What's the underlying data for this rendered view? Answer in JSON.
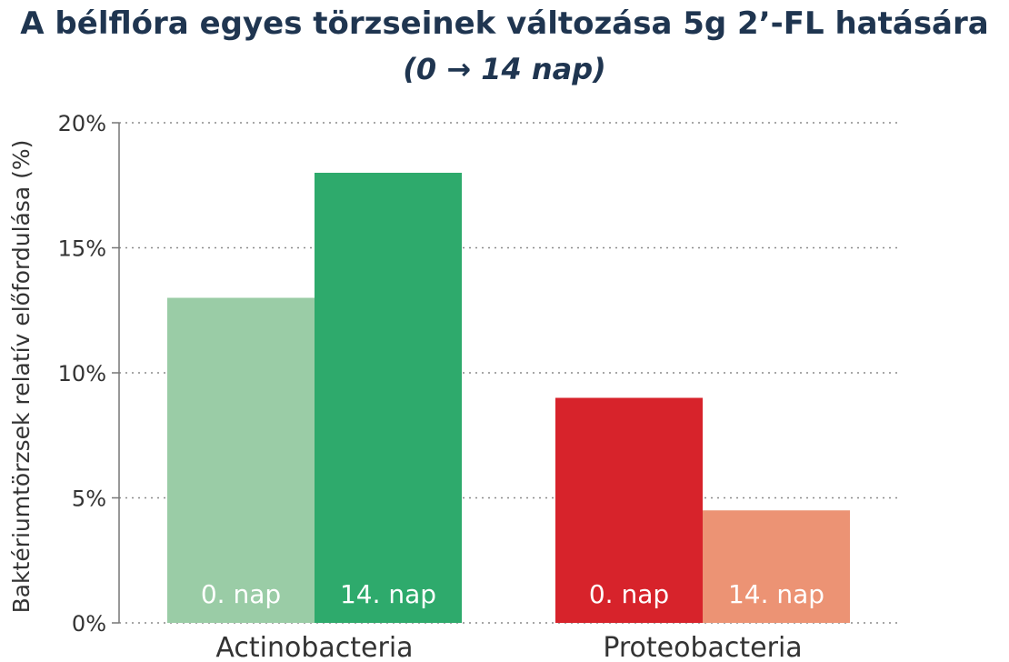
{
  "title": "A bélflóra egyes törzseinek változása 5g 2’-FL hatására",
  "subtitle": "(0 → 14 nap)",
  "chart_data": {
    "type": "bar",
    "title": "A bélflóra egyes törzseinek változása 5g 2’-FL hatására",
    "subtitle": "(0 → 14 nap)",
    "xlabel": "",
    "ylabel": "Baktériumtörzsek relatív előfordulása (%)",
    "ylim": [
      0,
      20
    ],
    "yticks": [
      0,
      5,
      10,
      15,
      20
    ],
    "ytick_labels": [
      "0%",
      "5%",
      "10%",
      "15%",
      "20%"
    ],
    "grid": "horizontal dotted",
    "categories": [
      "Actinobacteria",
      "Proteobacteria"
    ],
    "series": [
      {
        "name": "0. nap",
        "values": [
          13,
          9
        ],
        "colors": [
          "#9acca6",
          "#d7232b"
        ]
      },
      {
        "name": "14. nap",
        "values": [
          18,
          4.5
        ],
        "colors": [
          "#2eaa6c",
          "#ec9374"
        ]
      }
    ],
    "bar_labels": [
      "0. nap",
      "14. nap",
      "0. nap",
      "14. nap"
    ]
  }
}
